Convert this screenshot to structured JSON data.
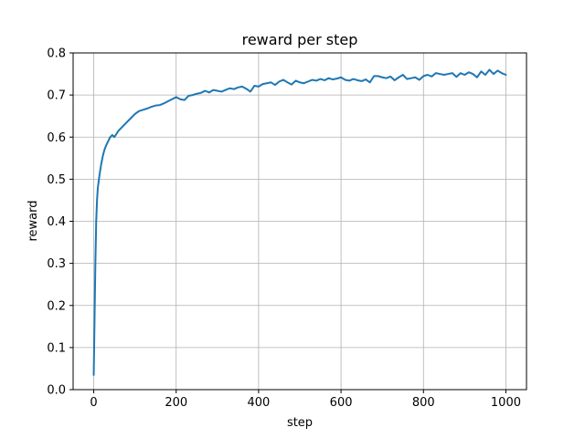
{
  "chart_data": {
    "type": "line",
    "title": "reward per step",
    "xlabel": "step",
    "ylabel": "reward",
    "xlim": [
      -50,
      1050
    ],
    "ylim": [
      0.0,
      0.8
    ],
    "x_ticks": [
      0,
      200,
      400,
      600,
      800,
      1000
    ],
    "x_tick_labels": [
      "0",
      "200",
      "400",
      "600",
      "800",
      "1000"
    ],
    "y_ticks": [
      0.0,
      0.1,
      0.2,
      0.3,
      0.4,
      0.5,
      0.6,
      0.7,
      0.8
    ],
    "y_tick_labels": [
      "0.0",
      "0.1",
      "0.2",
      "0.3",
      "0.4",
      "0.5",
      "0.6",
      "0.7",
      "0.8"
    ],
    "grid": true,
    "line_color": "#1f77b4",
    "series": [
      {
        "name": "",
        "x": [
          0,
          2,
          4,
          6,
          8,
          10,
          14,
          18,
          22,
          26,
          30,
          35,
          40,
          45,
          50,
          60,
          70,
          80,
          90,
          100,
          110,
          120,
          130,
          140,
          150,
          160,
          170,
          180,
          190,
          200,
          210,
          220,
          230,
          240,
          250,
          260,
          270,
          280,
          290,
          300,
          310,
          320,
          330,
          340,
          350,
          360,
          370,
          380,
          390,
          400,
          410,
          420,
          430,
          440,
          450,
          460,
          470,
          480,
          490,
          500,
          510,
          520,
          530,
          540,
          550,
          560,
          570,
          580,
          590,
          600,
          610,
          620,
          630,
          640,
          650,
          660,
          670,
          680,
          690,
          700,
          710,
          720,
          730,
          740,
          750,
          760,
          770,
          780,
          790,
          800,
          810,
          820,
          830,
          840,
          850,
          860,
          870,
          880,
          890,
          900,
          910,
          920,
          930,
          940,
          950,
          960,
          970,
          980,
          990,
          1000
        ],
        "y": [
          0.035,
          0.17,
          0.3,
          0.4,
          0.45,
          0.48,
          0.51,
          0.535,
          0.555,
          0.57,
          0.58,
          0.59,
          0.6,
          0.605,
          0.6,
          0.615,
          0.625,
          0.635,
          0.645,
          0.655,
          0.662,
          0.665,
          0.668,
          0.672,
          0.675,
          0.676,
          0.68,
          0.685,
          0.69,
          0.695,
          0.69,
          0.688,
          0.698,
          0.7,
          0.703,
          0.705,
          0.71,
          0.706,
          0.712,
          0.71,
          0.708,
          0.712,
          0.716,
          0.714,
          0.718,
          0.72,
          0.715,
          0.708,
          0.722,
          0.72,
          0.726,
          0.728,
          0.73,
          0.724,
          0.732,
          0.736,
          0.73,
          0.725,
          0.734,
          0.73,
          0.728,
          0.732,
          0.736,
          0.734,
          0.738,
          0.735,
          0.74,
          0.737,
          0.739,
          0.742,
          0.736,
          0.734,
          0.738,
          0.735,
          0.733,
          0.737,
          0.73,
          0.745,
          0.745,
          0.742,
          0.74,
          0.744,
          0.735,
          0.742,
          0.748,
          0.738,
          0.74,
          0.742,
          0.736,
          0.745,
          0.748,
          0.744,
          0.752,
          0.75,
          0.748,
          0.75,
          0.752,
          0.743,
          0.752,
          0.748,
          0.754,
          0.75,
          0.742,
          0.756,
          0.748,
          0.76,
          0.75,
          0.758,
          0.752,
          0.748
        ]
      }
    ]
  }
}
